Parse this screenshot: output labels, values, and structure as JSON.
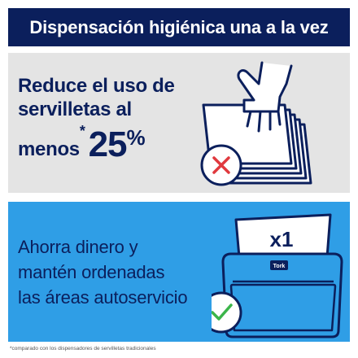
{
  "header": {
    "title": "Dispensación higiénica una a la vez"
  },
  "claim": {
    "line1": "Reduce el uso de",
    "line2": "servilletas al",
    "line3_prefix": "menos",
    "asterisk": "*",
    "percent_value": "25",
    "percent_sign": "%"
  },
  "benefit": {
    "line1": "Ahorra dinero y",
    "line2": "mantén ordenadas",
    "line3": "las áreas autoservicio"
  },
  "dispenser": {
    "quantity_label": "x1",
    "brand_badge": "Tork"
  },
  "icons": {
    "top": [
      "hand-icon",
      "napkin-stack-icon",
      "x-mark-icon"
    ],
    "bottom": [
      "dispenser-icon",
      "check-mark-icon"
    ]
  },
  "colors": {
    "navy": "#0b1f5c",
    "blue_panel": "#2f9ee6",
    "gray_panel": "#e4e4e4",
    "x_red": "#e0393e",
    "check_green": "#3bb54a"
  },
  "footnote": "*comparado con los dispensadores de servilletas tradicionales"
}
